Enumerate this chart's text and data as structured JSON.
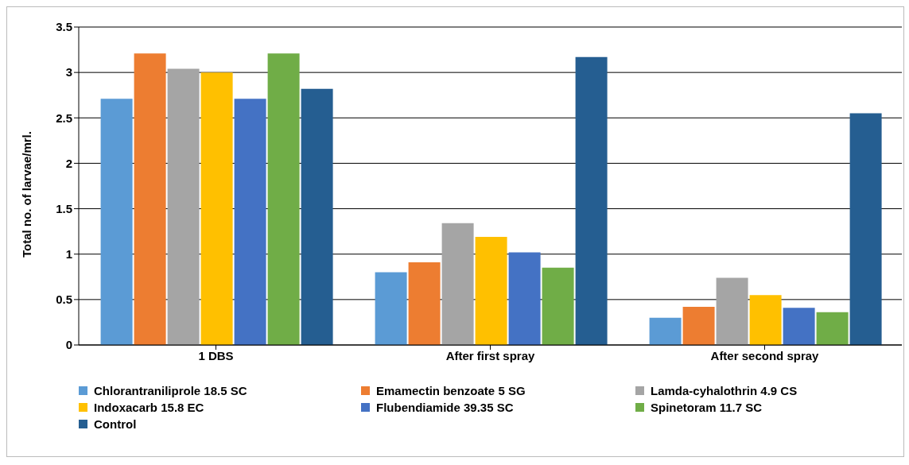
{
  "chart_data": {
    "type": "bar",
    "ylabel": "Total no. of larvae/mrl.",
    "categories": [
      "1 DBS",
      "After first spray",
      "After second spray"
    ],
    "series": [
      {
        "name": "Chlorantraniliprole 18.5 SC",
        "color": "#5b9bd5",
        "values": [
          2.71,
          0.8,
          0.3
        ]
      },
      {
        "name": "Emamectin benzoate 5 SG",
        "color": "#ed7d31",
        "values": [
          3.21,
          0.91,
          0.42
        ]
      },
      {
        "name": "Lamda-cyhalothrin 4.9 CS",
        "color": "#a5a5a5",
        "values": [
          3.04,
          1.34,
          0.74
        ]
      },
      {
        "name": "Indoxacarb 15.8 EC",
        "color": "#ffc000",
        "values": [
          3.0,
          1.19,
          0.55
        ]
      },
      {
        "name": "Flubendiamide 39.35 SC",
        "color": "#4472c4",
        "values": [
          2.71,
          1.02,
          0.41
        ]
      },
      {
        "name": "Spinetoram 11.7 SC",
        "color": "#70ad47",
        "values": [
          3.21,
          0.85,
          0.36
        ]
      },
      {
        "name": "Control",
        "color": "#255e91",
        "values": [
          2.82,
          3.17,
          2.55
        ]
      }
    ],
    "ylim": [
      0,
      3.5
    ],
    "yticks": [
      0,
      0.5,
      1,
      1.5,
      2,
      2.5,
      3,
      3.5
    ],
    "grid": "y",
    "legend": "bottom"
  }
}
